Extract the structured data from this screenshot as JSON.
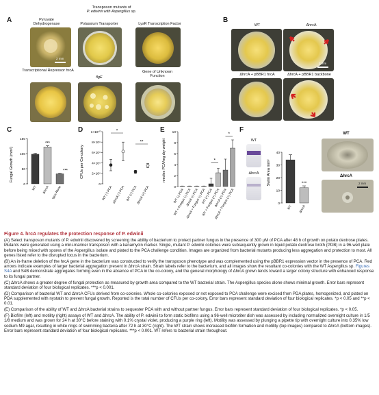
{
  "panel_a": {
    "letter": "A",
    "header_line1": "Transposon mutants of",
    "header_line2": "P. edwinii with Aspergillus sp.",
    "plates": [
      {
        "label": "Pyruvate Dehydrogenase"
      },
      {
        "label": "Potassium Transporter"
      },
      {
        "label": "LysR Transcription Factor"
      },
      {
        "label": "Transcriptional Repressor hrcA"
      },
      {
        "label": "flgE"
      },
      {
        "label": "Gene of Unknown Function"
      }
    ],
    "scale": "2 mm"
  },
  "panel_b": {
    "letter": "B",
    "labels": [
      "WT",
      "ΔhrcA",
      "ΔhrcA + pBBR1 hrcA",
      "ΔhrcA + pBBR1 backbone"
    ],
    "scale": "2 mm"
  },
  "panel_c": {
    "letter": "C",
    "ylabel": "Fungal Growth (mm²)",
    "yticks": [
      "0",
      "50",
      "100",
      "150"
    ],
    "categories": [
      "WT",
      "ΔhrcA",
      "Fungus Alone"
    ],
    "sig": [
      "***",
      "***"
    ]
  },
  "panel_d": {
    "letter": "D",
    "ylabel": "CFUs per Co-colony",
    "yticks": [
      "0",
      "2×10⁹",
      "4×10⁹",
      "6×10⁹",
      "8×10⁹",
      "1×10¹⁰"
    ],
    "categories": [
      "WT (-) PCA",
      "ΔhrcA (-) PCA",
      "WT (+) PCA",
      "ΔhrcA (+) PCA"
    ],
    "sig": [
      "*",
      "**"
    ]
  },
  "panel_e": {
    "letter": "E",
    "ylabel": "nmoles PCA/mg dry weight",
    "yticks": [
      "0",
      "2",
      "4",
      "6",
      "8",
      "10"
    ],
    "categories": [
      "WT (-) PCA",
      "WT + Fungus (-) PCA",
      "ΔhrcA (-) PCA",
      "ΔhrcA + Fungus (-) PCA",
      "WT (+) PCA",
      "WT + Fungus (+) PCA",
      "ΔhrcA (+) PCA",
      "ΔhrcA + Fungus (+) PCA"
    ],
    "sig": [
      "*",
      "*"
    ]
  },
  "panel_f": {
    "letter": "F",
    "tube_labels": [
      "WT",
      "ΔhrcA"
    ],
    "ylabel": "Swim Area mm²",
    "yticks": [
      "0",
      "10",
      "20",
      "30",
      "40"
    ],
    "categories": [
      "WT",
      "ΔhrcA"
    ],
    "sig": "***",
    "plate_labels": [
      "WT",
      "ΔhrcA"
    ],
    "scale": "2 mm"
  },
  "chart_data": [
    {
      "type": "bar",
      "panel": "C",
      "categories": [
        "WT",
        "ΔhrcA",
        "Fungus Alone"
      ],
      "values": [
        98,
        122,
        33
      ],
      "errors": [
        3,
        4,
        2
      ],
      "ylabel": "Fungal Growth (mm²)",
      "ylim": [
        0,
        150
      ]
    },
    {
      "type": "scatter",
      "panel": "D",
      "categories": [
        "WT (-) PCA",
        "ΔhrcA (-) PCA",
        "WT (+) PCA",
        "ΔhrcA (+) PCA"
      ],
      "values": [
        3600000000,
        6200000000,
        2300000000,
        3500000000
      ],
      "errors": [
        1100000000,
        1800000000,
        300000000,
        400000000
      ],
      "ylabel": "CFUs per Co-colony",
      "ylim": [
        0,
        10000000000
      ]
    },
    {
      "type": "bar",
      "panel": "E",
      "categories": [
        "WT (-) PCA",
        "WT + Fungus (-) PCA",
        "ΔhrcA (-) PCA",
        "ΔhrcA + Fungus (-) PCA",
        "WT (+) PCA",
        "WT + Fungus (+) PCA",
        "ΔhrcA (+) PCA",
        "ΔhrcA + Fungus (+) PCA"
      ],
      "values": [
        0.05,
        0.05,
        0.05,
        0.05,
        0.5,
        2.5,
        3.0,
        7.0
      ],
      "errors": [
        0.05,
        0.05,
        0.05,
        0.05,
        1.0,
        0.8,
        2.0,
        1.5
      ],
      "ylabel": "nmoles PCA/mg dry weight",
      "ylim": [
        0,
        10
      ]
    },
    {
      "type": "bar",
      "panel": "F",
      "categories": [
        "WT",
        "ΔhrcA"
      ],
      "values": [
        34,
        12
      ],
      "errors": [
        4,
        1.5
      ],
      "ylabel": "Swim Area mm²",
      "ylim": [
        0,
        40
      ]
    }
  ],
  "caption": {
    "title": "Figure 4. hrcA regulates the protection response of P. edwinii",
    "a": "(A) Select transposon mutants of P. edwinii discovered by screening the ability of bacterium to protect partner fungus in the presence of 300 μM of PCA after 48 h of growth on potato dextrose plates. Mutants were generated using a mini-mariner transposon with a kanamycin marker. Single, mutant P. edwinii colonies were subsequently grown in liquid potato dextrose broth (PDB) in a 96-well plate before being mixed with spores of the Aspergillus isolate and plated to the PCA challenge condition. Images are organized from bacterial mutants producing less aggregation and protection to most. All genes listed refer to the disrupted locus in the bacterium.",
    "b_1": "(B) An in-frame deletion of the hrcA gene in the bacterium was constructed to verify the transposon phenotype and was complemented using the pBBR1 expression vector in the presence of PCA. Red arrows indicate examples of larger bacterial aggregation present in ΔhrcA strain. Strain labels refer to the bacterium, and all images show the resultant co-colonies with the WT Aspergillus sp. ",
    "b_link": "Figures S4A",
    "b_2": " and S4B demonstrate aggregates forming even in the absence of PCA in the co-colony, and the general morphology of ΔhrcA grown tends toward a larger colony structure with enhanced response to its fungal partner.",
    "c": "(C) ΔhrcA shows a greater degree of fungal protection as measured by growth area compared to the WT bacterial strain. The Aspergillus species alone shows minimal growth. Error bars represent standard deviation of four biological replicates. ***p < 0.001.",
    "d": "(D) Comparison of bacterial WT and ΔhrcA CFUs derived from co-colonies. Whole co-colonies exposed or not exposed to PCA challenge were excised from PDA plates, homogenized, and plated on PDA supplemented with nystatin to prevent fungal growth. Reported is the total number of CFUs per co-colony. Error bars represent standard deviation of four biological replicates. *p < 0.05 and **p < 0.01.",
    "e": "(E) Comparison of the ability of WT and ΔhrcA bacterial strains to sequester PCA with and without partner fungus. Error bars represent standard deviation of four biological replicates. *p < 0.05.",
    "f": "(F) Biofilm (left) and motility (right) assays of WT and ΔhrcA. The ability of P. edwinii to form static biofilms using a 96-well microtiter dish was assessed by including normalized overnight culture in 1/5 1/8 medium and was grown for 24 h at 30°C before staining with 0.1% crystal violet, producing a purple ring (left). Motility was assessed by plunging a pipette tip with overnight culture into 0.35% low sodium M9 agar, resulting in white rings of swimming bacteria after 72 h at 30°C (right). The WT strain shows increased biofilm formation and motility (top images) compared to ΔhrcA (bottom images). Error bars represent standard deviation of four biological replicates. ***p < 0.001. WT refers to bacterial strain throughout."
  }
}
